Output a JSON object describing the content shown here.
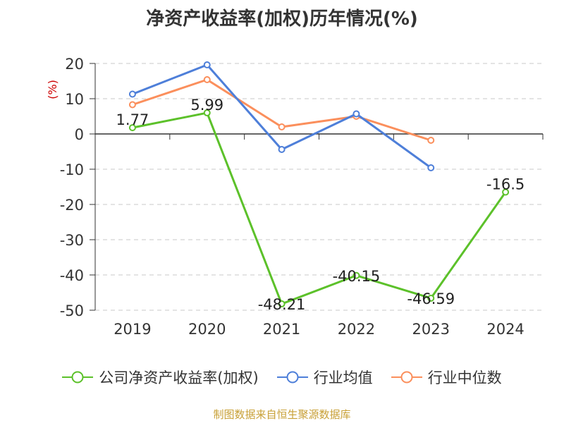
{
  "chart_data": {
    "type": "line",
    "title": "净资产收益率(加权)历年情况(%)",
    "ylabel": "(%)",
    "categories": [
      "2019",
      "2020",
      "2021",
      "2022",
      "2023",
      "2024"
    ],
    "ylim": [
      -50,
      20
    ],
    "yticks": [
      20,
      10,
      0,
      -10,
      -20,
      -30,
      -40,
      -50
    ],
    "grid": true,
    "legend_position": "bottom",
    "series": [
      {
        "name": "公司净资产收益率(加权)",
        "color": "#5cc12a",
        "values": [
          1.77,
          5.99,
          -48.21,
          -40.15,
          -46.59,
          -16.5
        ],
        "labels": [
          "1.77",
          "5.99",
          "-48.21",
          "-40.15",
          "-46.59",
          "-16.5"
        ]
      },
      {
        "name": "行业均值",
        "color": "#4e7fd9",
        "values": [
          11.3,
          19.6,
          -4.4,
          5.7,
          -9.6,
          null
        ]
      },
      {
        "name": "行业中位数",
        "color": "#fb8f5c",
        "values": [
          8.3,
          15.4,
          2.0,
          5.0,
          -1.8,
          null
        ]
      }
    ]
  },
  "source": "制图数据来自恒生聚源数据库"
}
